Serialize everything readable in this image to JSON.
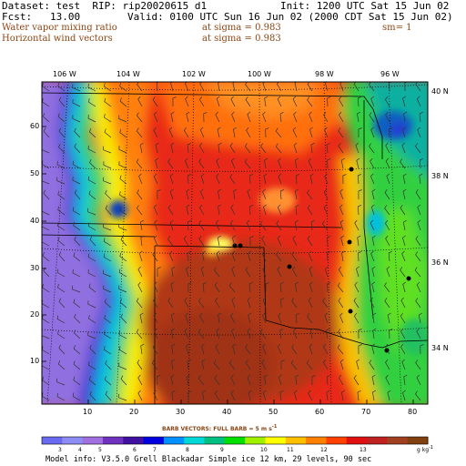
{
  "header": {
    "line1_left": "Dataset: test  RIP: rip20020615 d1",
    "line1_right": "Init: 1200 UTC Sat 15 Jun 02",
    "line2_left": "Fcst:   13.00",
    "line2_right": "Valid: 0100 UTC Sun 16 Jun 02 (2000 CDT Sat 15 Jun 02)",
    "line3_left": "Water vapor mixing ratio",
    "line3_mid": "at sigma = 0.983",
    "line3_right": "sm= 1",
    "line4_left": "Horizontal wind vectors",
    "line4_mid": "at sigma = 0.983"
  },
  "lon_labels": [
    "106 W",
    "104 W",
    "102 W",
    "100 W",
    "98 W",
    "96 W"
  ],
  "lat_labels": [
    "40 N",
    "38 N",
    "36 N",
    "34 N"
  ],
  "x_ticks": [
    "10",
    "20",
    "30",
    "40",
    "50",
    "60",
    "70",
    "80"
  ],
  "y_ticks": [
    "10",
    "20",
    "30",
    "40",
    "50",
    "60"
  ],
  "barb_note": "BARB VECTORS:  FULL BARB = 5 m s",
  "barb_note_sup": "-1",
  "legend": {
    "values": [
      "3",
      "4",
      "5",
      "6",
      "7",
      "8",
      "9",
      "10",
      "11",
      "12",
      "13"
    ],
    "units": "g kg",
    "units_sup": "-1",
    "colors": [
      "#6a6af0",
      "#8c8cf4",
      "#a070e0",
      "#7030c0",
      "#4010a0",
      "#0000e0",
      "#0090ff",
      "#00d8d8",
      "#00c080",
      "#00e000",
      "#a0f000",
      "#ffff00",
      "#ffc000",
      "#ff8000",
      "#ff4000",
      "#e01010",
      "#c02020",
      "#a04020",
      "#804010"
    ]
  },
  "model_info": "Model info: V3.5.0  Grell    Blackadar  Simple ice   12 km, 29 levels,  90 sec"
}
